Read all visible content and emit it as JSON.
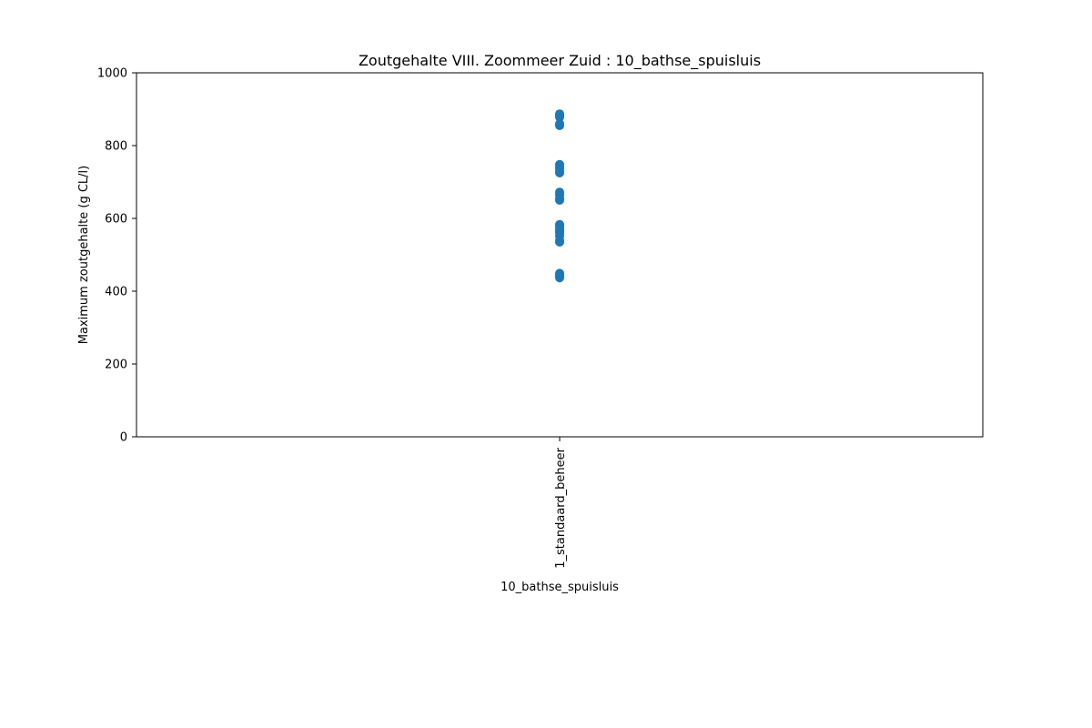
{
  "chart_data": {
    "type": "scatter",
    "title": "Zoutgehalte VIII. Zoommeer Zuid : 10_bathse_spuisluis",
    "xlabel": "10_bathse_spuisluis",
    "ylabel": "Maximum zoutgehalte (g CL/l)",
    "categories": [
      "1_standaard_beheer"
    ],
    "ylim": [
      0,
      1000
    ],
    "yticks": [
      0,
      200,
      400,
      600,
      800,
      1000
    ],
    "grid": false,
    "color": "#1f77b4",
    "series": [
      {
        "category": "1_standaard_beheer",
        "values": [
          437,
          441,
          445,
          449,
          535,
          540,
          552,
          560,
          566,
          572,
          578,
          583,
          650,
          655,
          665,
          672,
          725,
          730,
          737,
          742,
          748,
          855,
          860,
          878,
          883,
          887
        ]
      }
    ]
  }
}
